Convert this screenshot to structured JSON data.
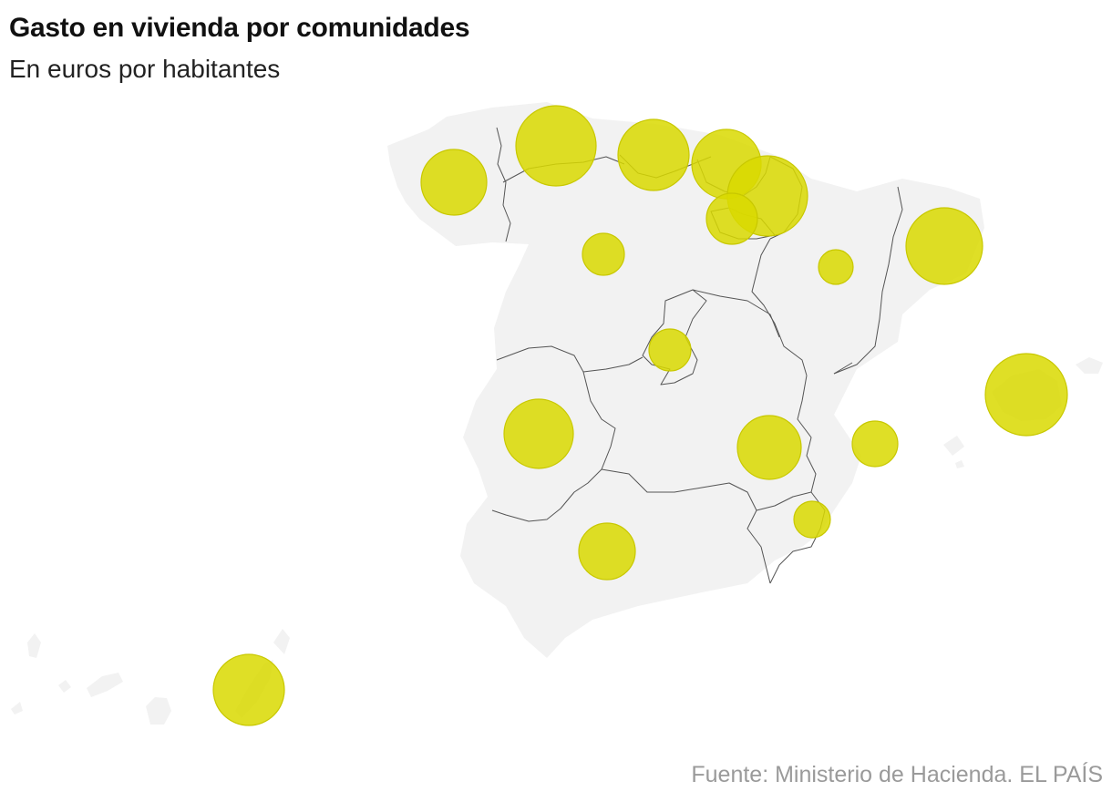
{
  "header": {
    "title": "Gasto en vivienda por comunidades",
    "subtitle": "En euros por habitantes"
  },
  "footer": {
    "source": "Fuente: Ministerio de Hacienda. EL PAÍS"
  },
  "colors": {
    "bubble_fill": "#d9d900",
    "bubble_stroke": "#c8c800",
    "land": "#f2f2f2",
    "border": "#555555"
  },
  "map_data": {
    "type": "proportional-symbol-map",
    "region": "Spain",
    "symbol": "circle",
    "regions": [
      "Galicia",
      "Asturias",
      "Cantabria",
      "País Vasco",
      "Navarra",
      "La Rioja",
      "Castilla y León",
      "Aragón",
      "Cataluña",
      "Comunidad de Madrid",
      "Extremadura",
      "Castilla-La Mancha",
      "Comunidad Valenciana",
      "Región de Murcia",
      "Andalucía",
      "Islas Baleares",
      "Canarias"
    ]
  }
}
